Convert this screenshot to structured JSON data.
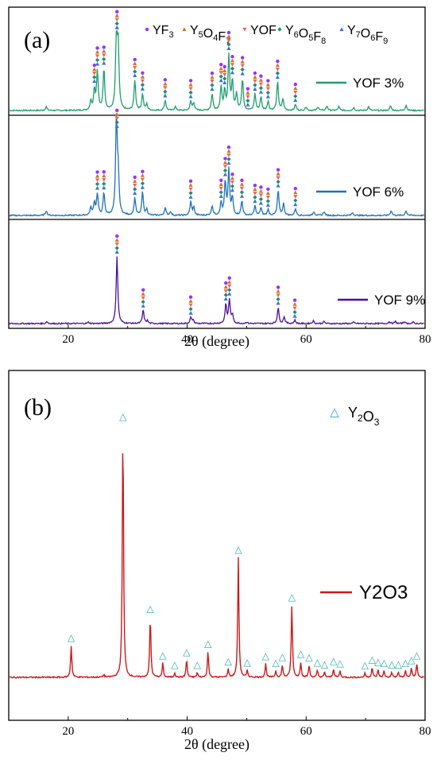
{
  "chart_data": [
    {
      "type": "line",
      "panel_label": "(a)",
      "xlabel": "2θ (degree)",
      "xlim": [
        10,
        80
      ],
      "xticks": [
        20,
        40,
        60,
        80
      ],
      "legend": {
        "placement": "top",
        "entries": [
          {
            "marker": "circle",
            "color": "#9B30FF",
            "name": "YF",
            "sub": "3"
          },
          {
            "marker": "triangle-up",
            "color": "#C8781E",
            "name": "Y",
            "sub": "5",
            "name2": "O",
            "sub2": "4",
            "name3": "F",
            "sub3": "7"
          },
          {
            "marker": "triangle-down",
            "color": "#F06060",
            "name": "YOF"
          },
          {
            "marker": "diamond",
            "color": "#1E8C6E",
            "name": "Y",
            "sub": "6",
            "name2": "O",
            "sub2": "5",
            "name3": "F",
            "sub3": "8"
          },
          {
            "marker": "triangle-up",
            "color": "#3A6FD8",
            "name": "Y",
            "sub": "7",
            "name2": "O",
            "sub2": "6",
            "name3": "F",
            "sub3": "9"
          }
        ]
      },
      "series": [
        {
          "name": "YOF 3%",
          "color": "#1F9E6E",
          "peaks": [
            [
              16.3,
              0.05
            ],
            [
              23.8,
              0.12
            ],
            [
              24.4,
              0.27
            ],
            [
              24.9,
              0.52
            ],
            [
              26.0,
              0.55
            ],
            [
              28.1,
              1.0
            ],
            [
              28.4,
              0.82
            ],
            [
              31.2,
              0.4
            ],
            [
              32.5,
              0.22
            ],
            [
              33.2,
              0.08
            ],
            [
              36.3,
              0.14
            ],
            [
              38.0,
              0.05
            ],
            [
              40.6,
              0.12
            ],
            [
              41.1,
              0.1
            ],
            [
              44.2,
              0.22
            ],
            [
              45.7,
              0.31
            ],
            [
              46.3,
              0.25
            ],
            [
              47.0,
              0.72
            ],
            [
              47.6,
              0.38
            ],
            [
              48.3,
              0.22
            ],
            [
              49.3,
              0.42
            ],
            [
              51.4,
              0.22
            ],
            [
              52.4,
              0.18
            ],
            [
              53.6,
              0.12
            ],
            [
              55.2,
              0.38
            ],
            [
              56.1,
              0.15
            ],
            [
              58.2,
              0.08
            ],
            [
              60.0,
              0.05
            ],
            [
              62.0,
              0.05
            ],
            [
              63.5,
              0.06
            ],
            [
              65.5,
              0.05
            ],
            [
              68.0,
              0.04
            ],
            [
              70.5,
              0.05
            ],
            [
              74.2,
              0.06
            ],
            [
              76.8,
              0.07
            ]
          ],
          "markers_x": [
            24.4,
            24.9,
            26.0,
            28.2,
            31.2,
            32.5,
            36.3,
            40.6,
            44.2,
            45.7,
            46.3,
            47.0,
            47.6,
            49.3,
            50.2,
            51.4,
            52.4,
            53.6,
            55.2,
            58.2
          ]
        },
        {
          "name": "YOF 6%",
          "color": "#1F72B8",
          "peaks": [
            [
              16.3,
              0.05
            ],
            [
              23.8,
              0.08
            ],
            [
              24.4,
              0.13
            ],
            [
              24.9,
              0.22
            ],
            [
              26.0,
              0.23
            ],
            [
              28.1,
              1.0
            ],
            [
              28.4,
              0.4
            ],
            [
              31.2,
              0.18
            ],
            [
              32.5,
              0.24
            ],
            [
              33.2,
              0.06
            ],
            [
              36.3,
              0.08
            ],
            [
              37.2,
              0.04
            ],
            [
              40.6,
              0.14
            ],
            [
              41.1,
              0.08
            ],
            [
              44.2,
              0.1
            ],
            [
              45.7,
              0.13
            ],
            [
              46.4,
              0.34
            ],
            [
              47.0,
              0.46
            ],
            [
              47.6,
              0.18
            ],
            [
              49.2,
              0.15
            ],
            [
              51.4,
              0.1
            ],
            [
              52.4,
              0.08
            ],
            [
              53.6,
              0.06
            ],
            [
              55.3,
              0.26
            ],
            [
              56.2,
              0.12
            ],
            [
              58.2,
              0.07
            ],
            [
              61.3,
              0.04
            ],
            [
              63.0,
              0.04
            ],
            [
              67.8,
              0.03
            ],
            [
              74.3,
              0.05
            ],
            [
              76.8,
              0.05
            ]
          ],
          "markers_x": [
            24.9,
            26.0,
            28.2,
            31.2,
            32.5,
            40.6,
            45.7,
            46.4,
            47.0,
            47.6,
            49.2,
            51.4,
            52.4,
            53.6,
            55.3,
            58.2
          ]
        },
        {
          "name": "YOF 9%",
          "color": "#4B0FA0",
          "peaks": [
            [
              16.4,
              0.03
            ],
            [
              23.4,
              0.02
            ],
            [
              28.2,
              1.0
            ],
            [
              32.6,
              0.2
            ],
            [
              33.3,
              0.04
            ],
            [
              40.6,
              0.09
            ],
            [
              41.0,
              0.05
            ],
            [
              46.5,
              0.28
            ],
            [
              47.1,
              0.35
            ],
            [
              47.6,
              0.12
            ],
            [
              50.0,
              0.02
            ],
            [
              55.3,
              0.24
            ],
            [
              56.3,
              0.1
            ],
            [
              58.1,
              0.05
            ],
            [
              61.2,
              0.04
            ],
            [
              63.0,
              0.03
            ],
            [
              68.0,
              0.02
            ],
            [
              74.0,
              0.03
            ],
            [
              75.0,
              0.03
            ],
            [
              76.5,
              0.03
            ],
            [
              78.0,
              0.02
            ]
          ],
          "markers_x": [
            28.2,
            32.6,
            40.6,
            46.5,
            47.1,
            55.3,
            58.1
          ]
        }
      ]
    },
    {
      "type": "line",
      "panel_label": "(b)",
      "xlabel": "2θ (degree)",
      "xlim": [
        10,
        80
      ],
      "xticks": [
        20,
        40,
        60,
        80
      ],
      "legend": {
        "placement": "top-right",
        "marker": "△",
        "marker_color": "#2AA8A8",
        "name": "Y",
        "sub": "2",
        "name2": "O",
        "sub2": "3"
      },
      "series": [
        {
          "name": "Y2O3",
          "color": "#CC1A1A",
          "peaks": [
            [
              20.5,
              0.125
            ],
            [
              26.0,
              0.01
            ],
            [
              29.2,
              1.0
            ],
            [
              33.8,
              0.24
            ],
            [
              35.9,
              0.056
            ],
            [
              37.9,
              0.018
            ],
            [
              39.9,
              0.069
            ],
            [
              41.7,
              0.018
            ],
            [
              43.5,
              0.102
            ],
            [
              46.9,
              0.031
            ],
            [
              48.6,
              0.474
            ],
            [
              50.1,
              0.025
            ],
            [
              53.2,
              0.053
            ],
            [
              54.9,
              0.025
            ],
            [
              56.0,
              0.048
            ],
            [
              57.6,
              0.285
            ],
            [
              59.1,
              0.06
            ],
            [
              60.5,
              0.048
            ],
            [
              61.9,
              0.027
            ],
            [
              63.1,
              0.02
            ],
            [
              64.6,
              0.034
            ],
            [
              65.7,
              0.025
            ],
            [
              69.9,
              0.016
            ],
            [
              71.1,
              0.039
            ],
            [
              72.1,
              0.029
            ],
            [
              73.1,
              0.025
            ],
            [
              74.4,
              0.02
            ],
            [
              75.5,
              0.02
            ],
            [
              76.7,
              0.025
            ],
            [
              77.7,
              0.036
            ],
            [
              78.6,
              0.056
            ]
          ],
          "markers_x": [
            20.5,
            29.2,
            33.8,
            35.9,
            37.9,
            39.9,
            41.7,
            43.5,
            46.9,
            48.6,
            50.1,
            53.2,
            54.9,
            56.0,
            57.6,
            59.1,
            60.5,
            61.9,
            63.1,
            64.6,
            65.7,
            69.9,
            71.1,
            72.1,
            73.1,
            74.4,
            75.5,
            76.7,
            77.7,
            78.6
          ]
        }
      ]
    }
  ]
}
